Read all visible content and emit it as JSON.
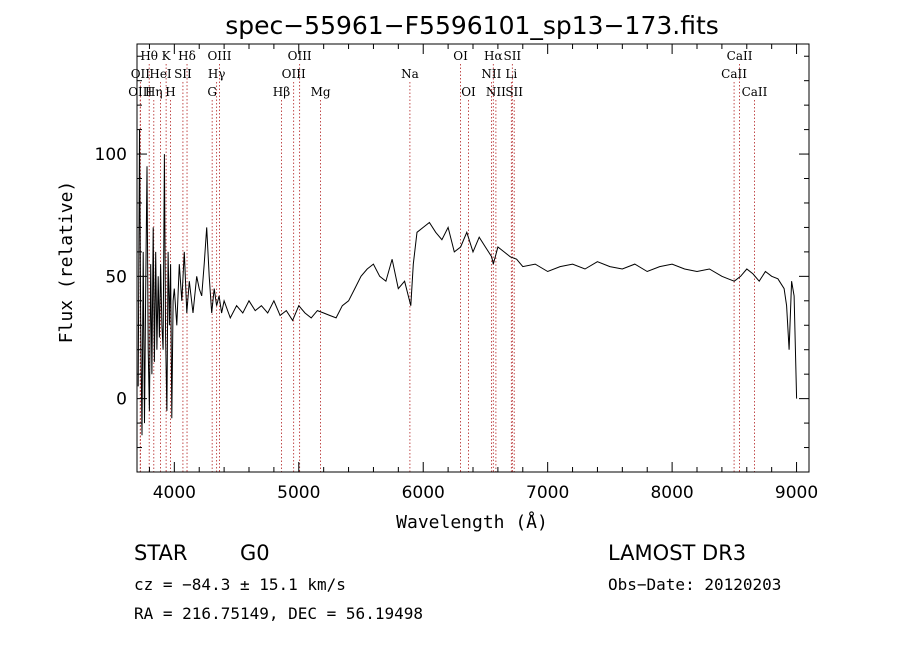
{
  "chart_data": {
    "type": "line",
    "title": "spec−55961−F5596101_sp13−173.fits",
    "xlabel": "Wavelength (Å)",
    "ylabel": "Flux (relative)",
    "xlim": [
      3700,
      9100
    ],
    "ylim": [
      -30,
      145
    ],
    "xticks": [
      4000,
      5000,
      6000,
      7000,
      8000,
      9000
    ],
    "yticks": [
      0,
      50,
      100
    ],
    "series": [
      {
        "name": "flux",
        "x": [
          3710,
          3720,
          3730,
          3740,
          3750,
          3760,
          3770,
          3780,
          3790,
          3800,
          3810,
          3820,
          3830,
          3840,
          3850,
          3860,
          3870,
          3880,
          3890,
          3900,
          3910,
          3920,
          3930,
          3940,
          3950,
          3960,
          3970,
          3980,
          3990,
          4000,
          4020,
          4040,
          4060,
          4080,
          4100,
          4120,
          4150,
          4180,
          4200,
          4220,
          4240,
          4260,
          4280,
          4300,
          4320,
          4340,
          4360,
          4380,
          4400,
          4450,
          4500,
          4550,
          4600,
          4650,
          4700,
          4750,
          4800,
          4850,
          4900,
          4950,
          5000,
          5050,
          5100,
          5150,
          5200,
          5250,
          5300,
          5350,
          5400,
          5450,
          5500,
          5550,
          5600,
          5650,
          5700,
          5750,
          5800,
          5850,
          5880,
          5900,
          5920,
          5950,
          6000,
          6050,
          6100,
          6150,
          6200,
          6250,
          6300,
          6350,
          6400,
          6450,
          6500,
          6550,
          6563,
          6600,
          6650,
          6700,
          6750,
          6800,
          6900,
          7000,
          7100,
          7200,
          7300,
          7400,
          7500,
          7600,
          7700,
          7800,
          7900,
          8000,
          8100,
          8200,
          8300,
          8400,
          8450,
          8500,
          8550,
          8600,
          8650,
          8700,
          8750,
          8800,
          8850,
          8900,
          8920,
          8940,
          8960,
          8980,
          9000
        ],
        "y": [
          5,
          110,
          30,
          -15,
          60,
          -10,
          45,
          95,
          20,
          -5,
          55,
          10,
          70,
          15,
          60,
          20,
          50,
          25,
          55,
          30,
          20,
          100,
          25,
          -5,
          60,
          30,
          55,
          -8,
          40,
          45,
          30,
          55,
          40,
          60,
          35,
          48,
          35,
          50,
          45,
          42,
          55,
          70,
          50,
          35,
          45,
          38,
          42,
          35,
          40,
          33,
          38,
          35,
          40,
          36,
          38,
          35,
          40,
          34,
          36,
          32,
          38,
          35,
          33,
          36,
          35,
          34,
          33,
          38,
          40,
          45,
          50,
          53,
          55,
          50,
          48,
          57,
          45,
          48,
          42,
          38,
          55,
          68,
          70,
          72,
          68,
          65,
          70,
          60,
          62,
          68,
          60,
          66,
          62,
          58,
          55,
          62,
          60,
          58,
          57,
          54,
          55,
          52,
          54,
          55,
          53,
          56,
          54,
          53,
          55,
          52,
          54,
          55,
          53,
          52,
          53,
          50,
          49,
          48,
          50,
          53,
          51,
          48,
          52,
          50,
          49,
          45,
          38,
          20,
          48,
          42,
          0
        ]
      }
    ],
    "spectral_lines": [
      {
        "label": "Hθ",
        "wavelength": 3798,
        "row": 1
      },
      {
        "label": "OII",
        "wavelength": 3727,
        "row": 2
      },
      {
        "label": "OIII",
        "wavelength": 3726,
        "row": 3
      },
      {
        "label": "K",
        "wavelength": 3934,
        "row": 1
      },
      {
        "label": "HeI",
        "wavelength": 3889,
        "row": 2
      },
      {
        "label": "Hη",
        "wavelength": 3835,
        "row": 3
      },
      {
        "label": "SII",
        "wavelength": 4069,
        "row": 2
      },
      {
        "label": "H",
        "wavelength": 3969,
        "row": 3
      },
      {
        "label": "Hδ",
        "wavelength": 4102,
        "row": 1
      },
      {
        "label": "OIII",
        "wavelength": 4363,
        "row": 1
      },
      {
        "label": "Hγ",
        "wavelength": 4340,
        "row": 2
      },
      {
        "label": "G",
        "wavelength": 4304,
        "row": 3
      },
      {
        "label": "Hβ",
        "wavelength": 4861,
        "row": 3
      },
      {
        "label": "OIII",
        "wavelength": 5007,
        "row": 1
      },
      {
        "label": "OIII",
        "wavelength": 4959,
        "row": 2
      },
      {
        "label": "Mg",
        "wavelength": 5175,
        "row": 3
      },
      {
        "label": "Na",
        "wavelength": 5893,
        "row": 2
      },
      {
        "label": "OI",
        "wavelength": 6300,
        "row": 1
      },
      {
        "label": "OI",
        "wavelength": 6364,
        "row": 3
      },
      {
        "label": "Hα",
        "wavelength": 6563,
        "row": 1
      },
      {
        "label": "NII",
        "wavelength": 6548,
        "row": 2
      },
      {
        "label": "NII",
        "wavelength": 6584,
        "row": 3
      },
      {
        "label": "SII",
        "wavelength": 6716,
        "row": 1
      },
      {
        "label": "Li",
        "wavelength": 6708,
        "row": 2
      },
      {
        "label": "SII",
        "wavelength": 6731,
        "row": 3
      },
      {
        "label": "CaII",
        "wavelength": 8542,
        "row": 1
      },
      {
        "label": "CaII",
        "wavelength": 8498,
        "row": 2
      },
      {
        "label": "CaII",
        "wavelength": 8662,
        "row": 3
      }
    ]
  },
  "info": {
    "object_class": "STAR",
    "subclass": "G0",
    "survey": "LAMOST DR3",
    "cz": "cz = −84.3 ± 15.1 km/s",
    "obs_date": "Obs−Date: 20120203",
    "coords": "RA = 216.75149, DEC =  56.19498"
  }
}
